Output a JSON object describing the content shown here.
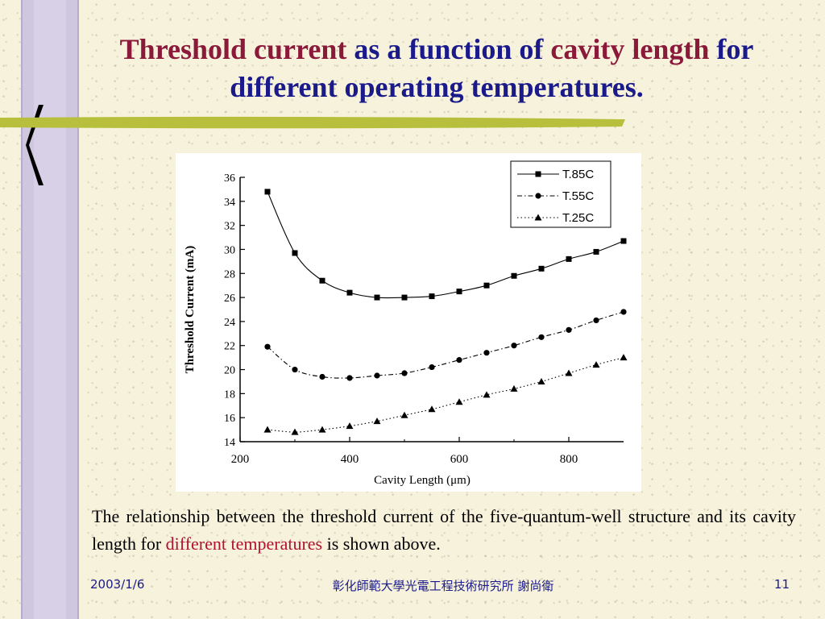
{
  "slide": {
    "title_part1": "Threshold current",
    "title_part2": " as a function of ",
    "title_part3": "cavity length",
    "title_part4": " for",
    "title_line2": "different operating temperatures.",
    "caption_part1": "The relationship between the threshold current of the five-quantum-well structure and its cavity length for ",
    "caption_highlight": "different temperatures",
    "caption_part2": " is shown above.",
    "footer_date": "2003/1/6",
    "footer_center": "彰化師範大學光電工程技術研究所  謝尚衛",
    "footer_page": "11"
  },
  "colors": {
    "title_blue": "#1a1a8a",
    "title_red": "#8b1a3a",
    "caption_red": "#b0112f",
    "accent_bar": "#b8bf3c",
    "side_panel": "#cfc6e0"
  },
  "chart_data": {
    "type": "line",
    "xlabel": "Cavity Length (μm)",
    "ylabel": "Threshold Current (mA)",
    "xlim": [
      200,
      900
    ],
    "ylim": [
      14,
      36
    ],
    "xticks": [
      200,
      400,
      600,
      800
    ],
    "yticks": [
      14,
      16,
      18,
      20,
      22,
      24,
      26,
      28,
      30,
      32,
      34,
      36
    ],
    "x": [
      250,
      300,
      350,
      400,
      450,
      500,
      550,
      600,
      650,
      700,
      750,
      800,
      850,
      900
    ],
    "legend_position": "top-right",
    "grid": false,
    "series": [
      {
        "name": "T.85C",
        "marker": "square",
        "dash": "solid",
        "values": [
          34.8,
          29.7,
          27.4,
          26.4,
          26.0,
          26.0,
          26.1,
          26.5,
          27.0,
          27.8,
          28.4,
          29.2,
          29.8,
          30.7
        ]
      },
      {
        "name": "T.55C",
        "marker": "circle",
        "dash": "dashdot",
        "values": [
          21.9,
          20.0,
          19.4,
          19.3,
          19.5,
          19.7,
          20.2,
          20.8,
          21.4,
          22.0,
          22.7,
          23.3,
          24.1,
          24.8
        ]
      },
      {
        "name": "T.25C",
        "marker": "triangle",
        "dash": "dotted",
        "values": [
          15.0,
          14.8,
          15.0,
          15.3,
          15.7,
          16.2,
          16.7,
          17.3,
          17.9,
          18.4,
          19.0,
          19.7,
          20.4,
          21.0
        ]
      }
    ]
  }
}
